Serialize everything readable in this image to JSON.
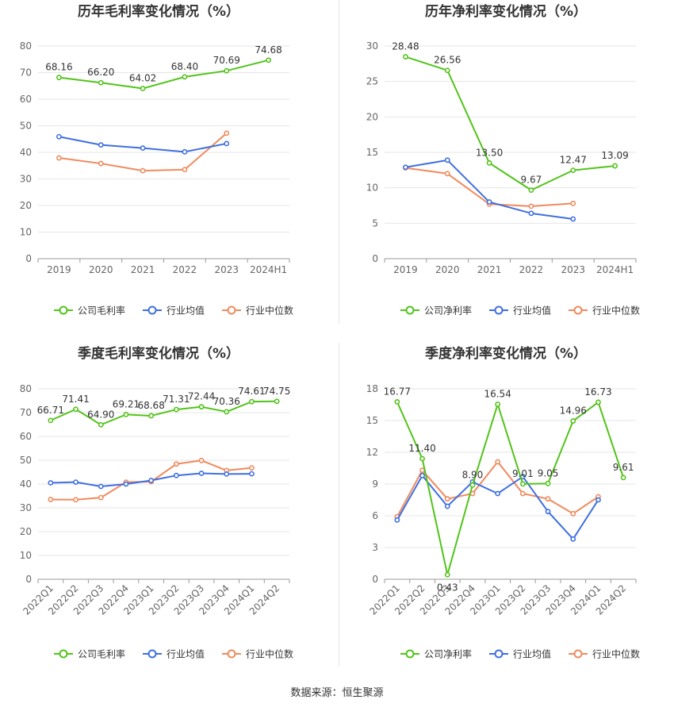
{
  "colors": {
    "company": "#52c41a",
    "industry_avg": "#3f6fe0",
    "industry_median": "#f08a5d",
    "grid": "#e6e6e6",
    "axis": "#999999",
    "tick_text": "#666666",
    "title_text": "#333333"
  },
  "source_text": "数据来源：恒生聚源",
  "chart_data": [
    {
      "type": "line",
      "title": "历年毛利率变化情况（%）",
      "categories": [
        "2019",
        "2020",
        "2021",
        "2022",
        "2023",
        "2024H1"
      ],
      "ylim": [
        0,
        80
      ],
      "yticks": [
        0,
        10,
        20,
        30,
        40,
        50,
        60,
        70,
        80
      ],
      "rotate_x": false,
      "grid": true,
      "legend_position": "bottom",
      "series": [
        {
          "name": "公司毛利率",
          "key": "company",
          "values": [
            68.16,
            66.2,
            64.02,
            68.4,
            70.69,
            74.68
          ],
          "labels": [
            "68.16",
            "66.20",
            "64.02",
            "68.40",
            "70.69",
            "74.68"
          ]
        },
        {
          "name": "行业均值",
          "key": "industry_avg",
          "values": [
            45.9,
            42.8,
            41.6,
            40.2,
            43.3,
            null
          ]
        },
        {
          "name": "行业中位数",
          "key": "industry_median",
          "values": [
            37.9,
            35.8,
            33.1,
            33.5,
            47.2,
            null
          ]
        }
      ]
    },
    {
      "type": "line",
      "title": "历年净利率变化情况（%）",
      "categories": [
        "2019",
        "2020",
        "2021",
        "2022",
        "2023",
        "2024H1"
      ],
      "ylim": [
        0,
        30
      ],
      "yticks": [
        0,
        5,
        10,
        15,
        20,
        25,
        30
      ],
      "rotate_x": false,
      "grid": true,
      "legend_position": "bottom",
      "series": [
        {
          "name": "公司净利率",
          "key": "company",
          "values": [
            28.48,
            26.56,
            13.5,
            9.67,
            12.47,
            13.09
          ],
          "labels": [
            "28.48",
            "26.56",
            "13.50",
            "9.67",
            "12.47",
            "13.09"
          ]
        },
        {
          "name": "行业均值",
          "key": "industry_avg",
          "values": [
            12.9,
            13.9,
            8.0,
            6.4,
            5.6,
            null
          ]
        },
        {
          "name": "行业中位数",
          "key": "industry_median",
          "values": [
            12.8,
            12.0,
            7.7,
            7.4,
            7.8,
            null
          ]
        }
      ]
    },
    {
      "type": "line",
      "title": "季度毛利率变化情况（%）",
      "categories": [
        "2022Q1",
        "2022Q2",
        "2022Q3",
        "2022Q4",
        "2023Q1",
        "2023Q2",
        "2023Q3",
        "2023Q4",
        "2024Q1",
        "2024Q2"
      ],
      "ylim": [
        0,
        80
      ],
      "yticks": [
        0,
        10,
        20,
        30,
        40,
        50,
        60,
        70,
        80
      ],
      "rotate_x": true,
      "grid": true,
      "legend_position": "bottom",
      "series": [
        {
          "name": "公司毛利率",
          "key": "company",
          "values": [
            66.71,
            71.41,
            64.9,
            69.21,
            68.68,
            71.31,
            72.44,
            70.36,
            74.61,
            74.75
          ],
          "labels": [
            "66.71",
            "71.41",
            "64.90",
            "69.21",
            "68.68",
            "71.31",
            "72.44",
            "70.36",
            "74.61",
            "74.75"
          ]
        },
        {
          "name": "行业均值",
          "key": "industry_avg",
          "values": [
            40.5,
            40.8,
            39.0,
            40.0,
            41.5,
            43.6,
            44.5,
            44.2,
            44.3,
            null
          ]
        },
        {
          "name": "行业中位数",
          "key": "industry_median",
          "values": [
            33.5,
            33.4,
            34.3,
            40.8,
            41.0,
            48.4,
            49.9,
            45.7,
            46.8,
            null
          ]
        }
      ]
    },
    {
      "type": "line",
      "title": "季度净利率变化情况（%）",
      "categories": [
        "2022Q1",
        "2022Q2",
        "2022Q3",
        "2022Q4",
        "2023Q1",
        "2023Q2",
        "2023Q3",
        "2023Q4",
        "2024Q1",
        "2024Q2"
      ],
      "ylim": [
        0,
        18
      ],
      "yticks": [
        0,
        3,
        6,
        9,
        12,
        15,
        18
      ],
      "rotate_x": true,
      "grid": true,
      "legend_position": "bottom",
      "series": [
        {
          "name": "公司净利率",
          "key": "company",
          "values": [
            16.77,
            11.4,
            0.43,
            8.9,
            16.54,
            9.01,
            9.05,
            14.96,
            16.73,
            9.61
          ],
          "labels": [
            "16.77",
            "11.40",
            "0.43",
            "8.90",
            "16.54",
            "9.01",
            "9.05",
            "14.96",
            "16.73",
            "9.61"
          ]
        },
        {
          "name": "行业均值",
          "key": "industry_avg",
          "values": [
            5.6,
            9.8,
            6.9,
            9.2,
            8.1,
            9.7,
            6.4,
            3.8,
            7.5,
            null
          ]
        },
        {
          "name": "行业中位数",
          "key": "industry_median",
          "values": [
            5.9,
            10.3,
            7.6,
            8.1,
            11.1,
            8.1,
            7.6,
            6.2,
            7.8,
            null
          ]
        }
      ]
    }
  ]
}
